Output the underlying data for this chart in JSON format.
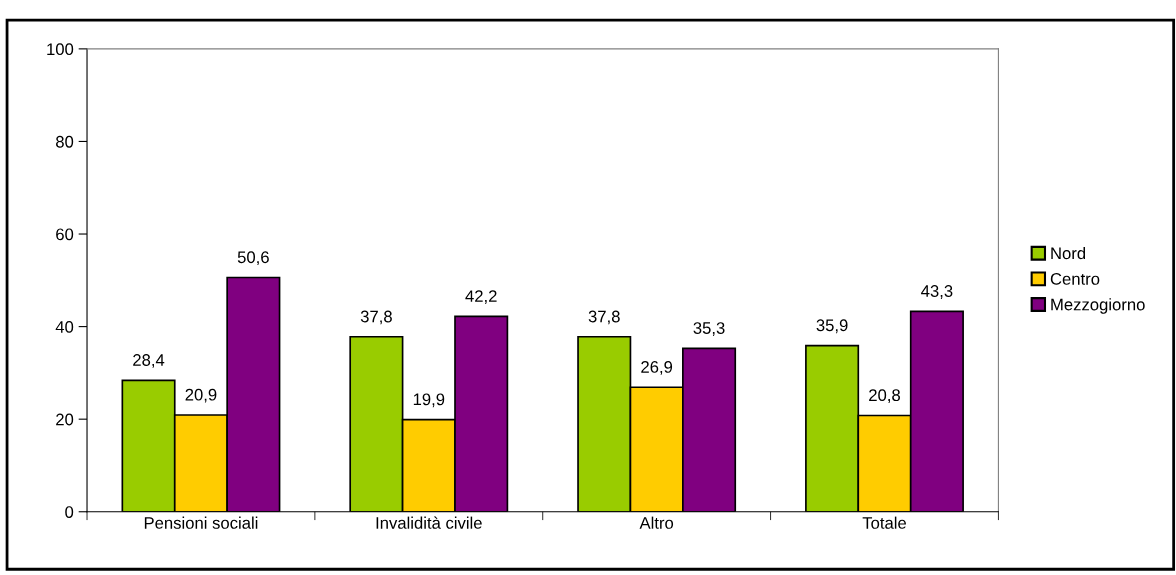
{
  "chart_data": {
    "type": "bar",
    "categories": [
      "Pensioni sociali",
      "Invalidità civile",
      "Altro",
      "Totale"
    ],
    "series": [
      {
        "name": "Nord",
        "color": "#99cc00",
        "values": [
          28.4,
          37.8,
          37.8,
          35.9
        ],
        "value_labels": [
          "28,4",
          "37,8",
          "37,8",
          "35,9"
        ]
      },
      {
        "name": "Centro",
        "color": "#ffcc00",
        "values": [
          20.9,
          19.9,
          26.9,
          20.8
        ],
        "value_labels": [
          "20,9",
          "19,9",
          "26,9",
          "20,8"
        ]
      },
      {
        "name": "Mezzogiorno",
        "color": "#800080",
        "values": [
          50.6,
          42.2,
          35.3,
          43.3
        ],
        "value_labels": [
          "50,6",
          "42,2",
          "35,3",
          "43,3"
        ]
      }
    ],
    "ylim": [
      0,
      100
    ],
    "yticks": [
      0,
      20,
      40,
      60,
      80,
      100
    ],
    "grid": false,
    "legend": "right"
  }
}
